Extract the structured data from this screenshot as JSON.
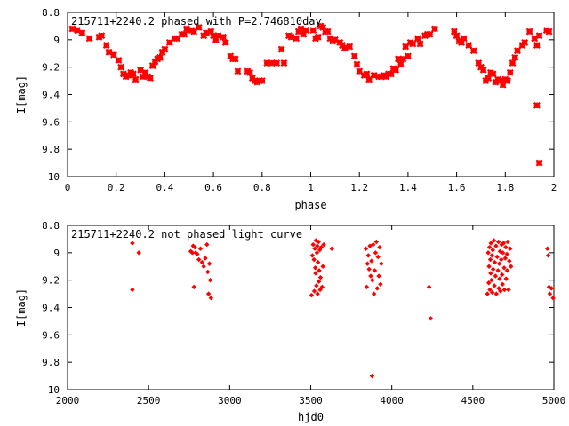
{
  "colors": {
    "points": "#ff0000",
    "axes": "#000000",
    "background": "#ffffff"
  },
  "chart_data": [
    {
      "type": "scatter",
      "title": "215711+2240.2 phased with P=2.746810day",
      "xlabel": "phase",
      "ylabel": "I[mag]",
      "xlim": [
        0,
        2
      ],
      "ylim": [
        10,
        8.8
      ],
      "y_inverted": true,
      "x_ticks": [
        "0",
        "0.2",
        "0.4",
        "0.6",
        "0.8",
        "1",
        "1.2",
        "1.4",
        "1.6",
        "1.8",
        "2"
      ],
      "y_ticks": [
        "8.8",
        "9",
        "9.2",
        "9.4",
        "9.6",
        "9.8",
        "10"
      ],
      "grid": false,
      "marker": "bold-cross",
      "series": [
        {
          "points": [
            [
              0.02,
              8.92
            ],
            [
              0.04,
              8.93
            ],
            [
              0.06,
              8.95
            ],
            [
              0.09,
              8.99
            ],
            [
              0.13,
              8.98
            ],
            [
              0.14,
              8.97
            ],
            [
              0.16,
              9.04
            ],
            [
              0.17,
              9.09
            ],
            [
              0.19,
              9.11
            ],
            [
              0.21,
              9.15
            ],
            [
              0.22,
              9.2
            ],
            [
              0.23,
              9.25
            ],
            [
              0.24,
              9.27
            ],
            [
              0.25,
              9.26
            ],
            [
              0.26,
              9.24
            ],
            [
              0.27,
              9.25
            ],
            [
              0.28,
              9.29
            ],
            [
              0.3,
              9.22
            ],
            [
              0.31,
              9.27
            ],
            [
              0.32,
              9.24
            ],
            [
              0.33,
              9.27
            ],
            [
              0.34,
              9.28
            ],
            [
              0.35,
              9.19
            ],
            [
              0.36,
              9.16
            ],
            [
              0.37,
              9.14
            ],
            [
              0.38,
              9.13
            ],
            [
              0.39,
              9.09
            ],
            [
              0.4,
              9.07
            ],
            [
              0.42,
              9.02
            ],
            [
              0.44,
              8.99
            ],
            [
              0.45,
              8.99
            ],
            [
              0.47,
              8.96
            ],
            [
              0.48,
              8.96
            ],
            [
              0.49,
              8.92
            ],
            [
              0.51,
              8.93
            ],
            [
              0.52,
              8.94
            ],
            [
              0.54,
              8.91
            ],
            [
              0.56,
              8.97
            ],
            [
              0.57,
              8.95
            ],
            [
              0.59,
              8.94
            ],
            [
              0.6,
              8.97
            ],
            [
              0.61,
              9.0
            ],
            [
              0.62,
              8.97
            ],
            [
              0.64,
              8.98
            ],
            [
              0.65,
              9.02
            ],
            [
              0.67,
              9.12
            ],
            [
              0.68,
              9.14
            ],
            [
              0.69,
              9.14
            ],
            [
              0.7,
              9.23
            ],
            [
              0.74,
              9.23
            ],
            [
              0.75,
              9.24
            ],
            [
              0.76,
              9.28
            ],
            [
              0.77,
              9.3
            ],
            [
              0.78,
              9.31
            ],
            [
              0.79,
              9.3
            ],
            [
              0.8,
              9.3
            ],
            [
              0.82,
              9.17
            ],
            [
              0.84,
              9.17
            ],
            [
              0.86,
              9.17
            ],
            [
              0.88,
              9.07
            ],
            [
              0.89,
              9.17
            ],
            [
              0.91,
              8.97
            ],
            [
              0.92,
              8.98
            ],
            [
              0.94,
              8.99
            ],
            [
              0.95,
              8.94
            ],
            [
              0.96,
              8.92
            ],
            [
              0.97,
              8.96
            ],
            [
              0.98,
              8.93
            ],
            [
              1.01,
              8.93
            ],
            [
              1.02,
              8.99
            ],
            [
              1.03,
              8.98
            ],
            [
              1.04,
              8.9
            ],
            [
              1.05,
              8.91
            ],
            [
              1.06,
              8.94
            ],
            [
              1.07,
              8.94
            ],
            [
              1.08,
              8.99
            ],
            [
              1.09,
              9.01
            ],
            [
              1.1,
              9.0
            ],
            [
              1.12,
              9.02
            ],
            [
              1.13,
              9.04
            ],
            [
              1.14,
              9.06
            ],
            [
              1.16,
              9.05
            ],
            [
              1.18,
              9.12
            ],
            [
              1.19,
              9.18
            ],
            [
              1.2,
              9.23
            ],
            [
              1.22,
              9.26
            ],
            [
              1.23,
              9.25
            ],
            [
              1.24,
              9.29
            ],
            [
              1.26,
              9.26
            ],
            [
              1.28,
              9.27
            ],
            [
              1.29,
              9.27
            ],
            [
              1.3,
              9.26
            ],
            [
              1.31,
              9.27
            ],
            [
              1.32,
              9.25
            ],
            [
              1.33,
              9.25
            ],
            [
              1.34,
              9.21
            ],
            [
              1.35,
              9.22
            ],
            [
              1.36,
              9.14
            ],
            [
              1.37,
              9.18
            ],
            [
              1.38,
              9.14
            ],
            [
              1.39,
              9.05
            ],
            [
              1.4,
              9.12
            ],
            [
              1.41,
              9.02
            ],
            [
              1.42,
              9.03
            ],
            [
              1.44,
              8.99
            ],
            [
              1.45,
              9.03
            ],
            [
              1.47,
              8.97
            ],
            [
              1.48,
              8.96
            ],
            [
              1.49,
              8.96
            ],
            [
              1.51,
              8.92
            ],
            [
              1.59,
              8.94
            ],
            [
              1.6,
              8.97
            ],
            [
              1.61,
              9.01
            ],
            [
              1.62,
              9.02
            ],
            [
              1.63,
              8.99
            ],
            [
              1.65,
              9.04
            ],
            [
              1.67,
              9.08
            ],
            [
              1.69,
              9.17
            ],
            [
              1.7,
              9.2
            ],
            [
              1.71,
              9.22
            ],
            [
              1.72,
              9.3
            ],
            [
              1.73,
              9.28
            ],
            [
              1.74,
              9.24
            ],
            [
              1.75,
              9.25
            ],
            [
              1.76,
              9.31
            ],
            [
              1.77,
              9.29
            ],
            [
              1.78,
              9.3
            ],
            [
              1.79,
              9.33
            ],
            [
              1.8,
              9.29
            ],
            [
              1.81,
              9.3
            ],
            [
              1.82,
              9.24
            ],
            [
              1.83,
              9.17
            ],
            [
              1.84,
              9.13
            ],
            [
              1.85,
              9.08
            ],
            [
              1.87,
              9.04
            ],
            [
              1.88,
              9.02
            ],
            [
              1.9,
              8.94
            ],
            [
              1.92,
              8.99
            ],
            [
              1.93,
              9.48
            ],
            [
              1.94,
              9.9
            ],
            [
              1.93,
              9.04
            ],
            [
              1.94,
              8.97
            ],
            [
              1.97,
              8.93
            ],
            [
              1.98,
              8.94
            ]
          ]
        }
      ]
    },
    {
      "type": "scatter",
      "title": "215711+2240.2 not phased light curve",
      "xlabel": "hjd0",
      "ylabel": "I[mag]",
      "xlim": [
        2000,
        5000
      ],
      "ylim": [
        10,
        8.8
      ],
      "y_inverted": true,
      "x_ticks": [
        "2000",
        "2500",
        "3000",
        "3500",
        "4000",
        "4500",
        "5000"
      ],
      "y_ticks": [
        "8.8",
        "9",
        "9.2",
        "9.4",
        "9.6",
        "9.8",
        "10"
      ],
      "grid": false,
      "marker": "small-diamond",
      "series": [
        {
          "points": [
            [
              2400,
              8.93
            ],
            [
              2400,
              9.27
            ],
            [
              2440,
              9.0
            ],
            [
              2760,
              8.99
            ],
            [
              2770,
              9.0
            ],
            [
              2775,
              8.95
            ],
            [
              2780,
              9.25
            ],
            [
              2785,
              8.96
            ],
            [
              2790,
              9.0
            ],
            [
              2800,
              9.01
            ],
            [
              2810,
              9.05
            ],
            [
              2820,
              8.97
            ],
            [
              2830,
              9.07
            ],
            [
              2840,
              9.1
            ],
            [
              2850,
              9.04
            ],
            [
              2860,
              8.94
            ],
            [
              2865,
              9.14
            ],
            [
              2870,
              9.3
            ],
            [
              2875,
              9.08
            ],
            [
              2880,
              9.2
            ],
            [
              2885,
              9.33
            ],
            [
              3505,
              9.31
            ],
            [
              3510,
              9.02
            ],
            [
              3515,
              8.94
            ],
            [
              3520,
              9.05
            ],
            [
              3522,
              9.28
            ],
            [
              3525,
              8.97
            ],
            [
              3528,
              9.11
            ],
            [
              3530,
              9.15
            ],
            [
              3532,
              8.91
            ],
            [
              3535,
              9.24
            ],
            [
              3538,
              9.0
            ],
            [
              3540,
              8.95
            ],
            [
              3542,
              9.3
            ],
            [
              3545,
              9.07
            ],
            [
              3548,
              8.92
            ],
            [
              3550,
              9.21
            ],
            [
              3552,
              9.13
            ],
            [
              3555,
              8.98
            ],
            [
              3558,
              9.27
            ],
            [
              3560,
              9.18
            ],
            [
              3565,
              8.96
            ],
            [
              3570,
              9.25
            ],
            [
              3575,
              9.1
            ],
            [
              3580,
              8.94
            ],
            [
              3630,
              8.97
            ],
            [
              3840,
              8.97
            ],
            [
              3845,
              9.25
            ],
            [
              3850,
              9.08
            ],
            [
              3855,
              9.02
            ],
            [
              3860,
              9.12
            ],
            [
              3865,
              8.95
            ],
            [
              3870,
              9.17
            ],
            [
              3875,
              9.06
            ],
            [
              3878,
              9.9
            ],
            [
              3880,
              9.2
            ],
            [
              3885,
              8.94
            ],
            [
              3890,
              9.3
            ],
            [
              3895,
              9.13
            ],
            [
              3900,
              9.0
            ],
            [
              3905,
              8.92
            ],
            [
              3910,
              9.26
            ],
            [
              3915,
              9.03
            ],
            [
              3920,
              9.17
            ],
            [
              3925,
              8.96
            ],
            [
              3930,
              9.23
            ],
            [
              3935,
              9.08
            ],
            [
              4230,
              9.25
            ],
            [
              4240,
              9.48
            ],
            [
              4590,
              9.3
            ],
            [
              4595,
              9.0
            ],
            [
              4598,
              9.22
            ],
            [
              4600,
              9.1
            ],
            [
              4603,
              8.96
            ],
            [
              4605,
              9.27
            ],
            [
              4608,
              9.05
            ],
            [
              4610,
              9.15
            ],
            [
              4612,
              8.93
            ],
            [
              4615,
              9.2
            ],
            [
              4618,
              9.02
            ],
            [
              4620,
              9.29
            ],
            [
              4623,
              8.98
            ],
            [
              4625,
              9.12
            ],
            [
              4630,
              8.91
            ],
            [
              4633,
              9.24
            ],
            [
              4635,
              9.07
            ],
            [
              4640,
              9.17
            ],
            [
              4643,
              8.95
            ],
            [
              4645,
              9.3
            ],
            [
              4650,
              9.03
            ],
            [
              4655,
              9.13
            ],
            [
              4658,
              8.92
            ],
            [
              4660,
              9.26
            ],
            [
              4663,
              9.08
            ],
            [
              4665,
              9.19
            ],
            [
              4668,
              8.99
            ],
            [
              4670,
              9.28
            ],
            [
              4675,
              9.05
            ],
            [
              4678,
              8.94
            ],
            [
              4680,
              9.16
            ],
            [
              4683,
              9.23
            ],
            [
              4685,
              9.0
            ],
            [
              4690,
              8.93
            ],
            [
              4693,
              9.11
            ],
            [
              4695,
              9.27
            ],
            [
              4700,
              9.04
            ],
            [
              4703,
              8.96
            ],
            [
              4705,
              9.19
            ],
            [
              4710,
              9.01
            ],
            [
              4712,
              9.13
            ],
            [
              4715,
              8.92
            ],
            [
              4720,
              9.27
            ],
            [
              4725,
              9.06
            ],
            [
              4730,
              8.97
            ],
            [
              4735,
              9.1
            ],
            [
              4960,
              8.97
            ],
            [
              4965,
              9.02
            ],
            [
              4970,
              9.25
            ],
            [
              4975,
              9.3
            ],
            [
              4985,
              9.26
            ],
            [
              4995,
              9.33
            ]
          ]
        }
      ]
    }
  ]
}
